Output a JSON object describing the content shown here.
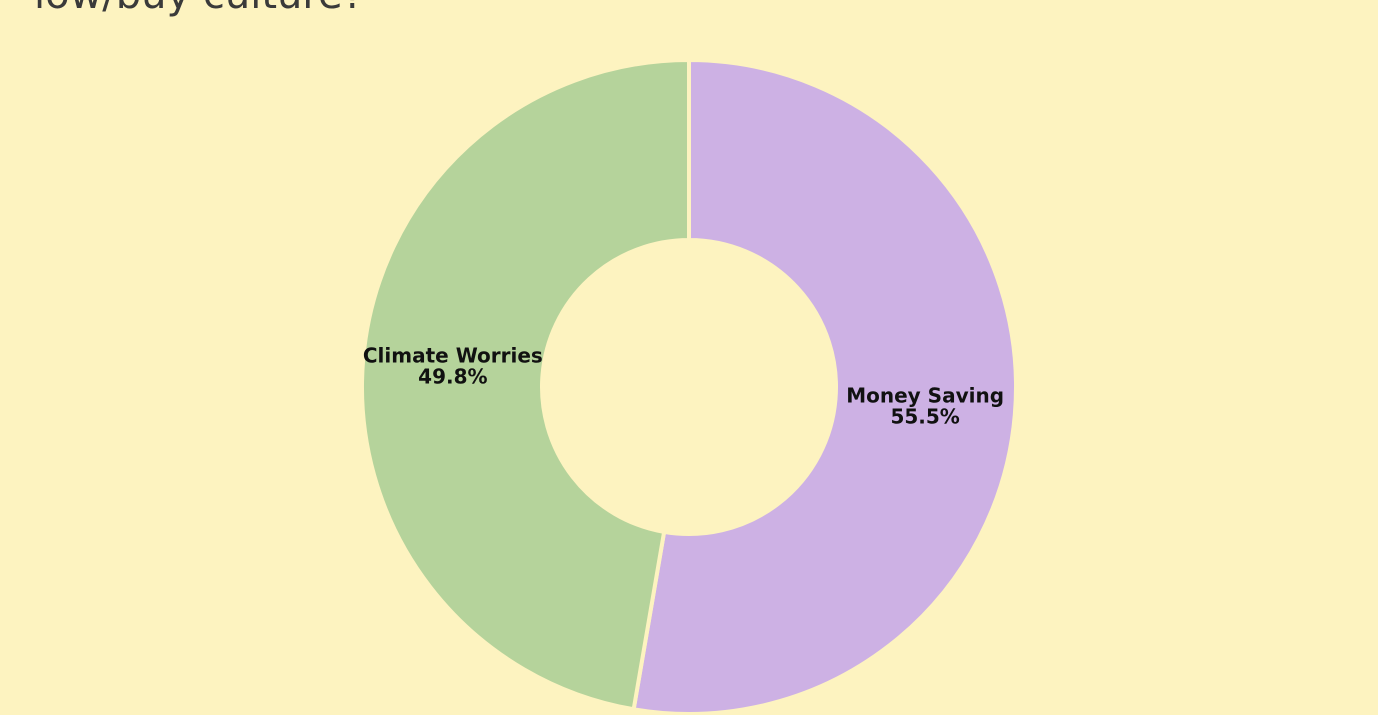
{
  "chart_data": {
    "type": "donut",
    "title": "low/buy culture?",
    "categories": [
      "Money Saving",
      "Climate Worries"
    ],
    "values": [
      55.5,
      49.8
    ],
    "value_labels": [
      "55.5%",
      "49.8%"
    ],
    "colors": [
      "#cdb1e4",
      "#b5d39b"
    ]
  }
}
